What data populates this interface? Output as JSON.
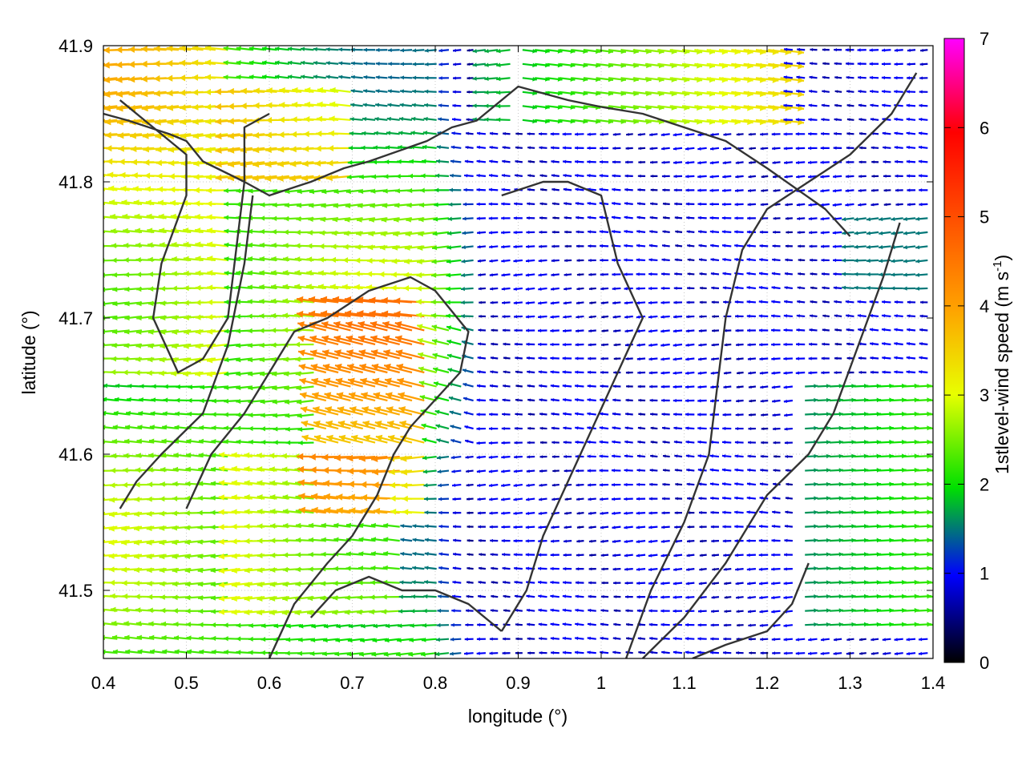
{
  "chart_data": {
    "type": "vector-field",
    "xlabel": "longitude (°)",
    "ylabel": "latitude (°)",
    "xlim": [
      0.4,
      1.4
    ],
    "ylim": [
      41.45,
      41.9
    ],
    "xticks": [
      0.4,
      0.5,
      0.6,
      0.7,
      0.8,
      0.9,
      1.0,
      1.1,
      1.2,
      1.3,
      1.4
    ],
    "xtick_labels": [
      "0.4",
      "0.5",
      "0.6",
      "0.7",
      "0.8",
      "0.9",
      "1",
      "1.1",
      "1.2",
      "1.3",
      "1.4"
    ],
    "yticks": [
      41.5,
      41.6,
      41.7,
      41.8,
      41.9
    ],
    "ytick_labels": [
      "41.5",
      "41.6",
      "41.7",
      "41.8",
      "41.9"
    ],
    "grid": true,
    "colorbar": {
      "label": "1stlevel-wind speed (m s",
      "label_sup": "-1",
      "label_end": ")",
      "range": [
        0,
        7
      ],
      "ticks": [
        0,
        1,
        2,
        3,
        4,
        5,
        6,
        7
      ],
      "tick_labels": [
        "0",
        "1",
        "2",
        "3",
        "4",
        "5",
        "6",
        "7"
      ],
      "palette": [
        [
          0.0,
          "#000000"
        ],
        [
          0.14,
          "#0000ff"
        ],
        [
          0.28,
          "#00e000"
        ],
        [
          0.43,
          "#e8ff00"
        ],
        [
          0.57,
          "#ffa000"
        ],
        [
          0.71,
          "#ff5000"
        ],
        [
          0.85,
          "#ff0000"
        ],
        [
          1.0,
          "#ff00ff"
        ]
      ]
    },
    "wind_regions": [
      {
        "lon": [
          0.4,
          0.85
        ],
        "lat": [
          41.45,
          41.9
        ],
        "speed": "2-4.5 m/s",
        "direction": "westward"
      },
      {
        "lon": [
          0.85,
          1.4
        ],
        "lat": [
          41.45,
          41.9
        ],
        "speed": "0.3-1.5 m/s",
        "direction": "mostly westward"
      },
      {
        "lon": [
          0.9,
          1.2
        ],
        "lat": [
          41.85,
          41.9
        ],
        "speed": "1.5-3.5 m/s",
        "direction": "eastward"
      },
      {
        "lon": [
          1.25,
          1.4
        ],
        "lat": [
          41.45,
          41.65
        ],
        "speed": "1.5-2.5 m/s",
        "direction": "eastward"
      }
    ],
    "contour_lines": [
      [
        [
          0.4,
          41.85
        ],
        [
          0.43,
          41.845
        ],
        [
          0.48,
          41.835
        ],
        [
          0.5,
          41.83
        ],
        [
          0.52,
          41.815
        ],
        [
          0.57,
          41.8
        ],
        [
          0.6,
          41.79
        ],
        [
          0.65,
          41.8
        ],
        [
          0.69,
          41.81
        ],
        [
          0.72,
          41.815
        ],
        [
          0.79,
          41.83
        ],
        [
          0.82,
          41.84
        ],
        [
          0.85,
          41.845
        ],
        [
          0.9,
          41.87
        ],
        [
          0.96,
          41.86
        ],
        [
          1.0,
          41.855
        ],
        [
          1.05,
          41.85
        ],
        [
          1.1,
          41.84
        ],
        [
          1.15,
          41.83
        ],
        [
          1.2,
          41.81
        ],
        [
          1.27,
          41.78
        ],
        [
          1.3,
          41.76
        ]
      ],
      [
        [
          0.42,
          41.86
        ],
        [
          0.48,
          41.83
        ],
        [
          0.5,
          41.82
        ],
        [
          0.5,
          41.79
        ],
        [
          0.47,
          41.74
        ],
        [
          0.46,
          41.7
        ],
        [
          0.49,
          41.66
        ],
        [
          0.52,
          41.67
        ],
        [
          0.55,
          41.7
        ],
        [
          0.56,
          41.75
        ],
        [
          0.57,
          41.8
        ],
        [
          0.57,
          41.84
        ],
        [
          0.6,
          41.85
        ]
      ],
      [
        [
          0.58,
          41.79
        ],
        [
          0.57,
          41.74
        ],
        [
          0.55,
          41.68
        ],
        [
          0.52,
          41.63
        ],
        [
          0.47,
          41.6
        ],
        [
          0.44,
          41.58
        ],
        [
          0.42,
          41.56
        ]
      ],
      [
        [
          0.6,
          41.45
        ],
        [
          0.63,
          41.49
        ],
        [
          0.67,
          41.52
        ],
        [
          0.7,
          41.54
        ],
        [
          0.73,
          41.57
        ],
        [
          0.75,
          41.6
        ],
        [
          0.77,
          41.62
        ],
        [
          0.8,
          41.64
        ],
        [
          0.83,
          41.66
        ],
        [
          0.84,
          41.69
        ],
        [
          0.8,
          41.72
        ],
        [
          0.77,
          41.73
        ],
        [
          0.72,
          41.72
        ],
        [
          0.67,
          41.7
        ],
        [
          0.63,
          41.69
        ],
        [
          0.6,
          41.66
        ],
        [
          0.57,
          41.63
        ],
        [
          0.53,
          41.6
        ],
        [
          0.5,
          41.56
        ]
      ],
      [
        [
          0.65,
          41.48
        ],
        [
          0.68,
          41.5
        ],
        [
          0.72,
          41.51
        ],
        [
          0.76,
          41.5
        ],
        [
          0.8,
          41.5
        ],
        [
          0.84,
          41.49
        ],
        [
          0.88,
          41.47
        ]
      ],
      [
        [
          0.88,
          41.79
        ],
        [
          0.93,
          41.8
        ],
        [
          0.96,
          41.8
        ],
        [
          1.0,
          41.79
        ],
        [
          1.02,
          41.74
        ],
        [
          1.05,
          41.7
        ],
        [
          1.02,
          41.66
        ],
        [
          0.99,
          41.62
        ],
        [
          0.96,
          41.58
        ],
        [
          0.93,
          41.54
        ],
        [
          0.91,
          41.5
        ],
        [
          0.88,
          41.47
        ]
      ],
      [
        [
          1.03,
          41.45
        ],
        [
          1.06,
          41.5
        ],
        [
          1.1,
          41.55
        ],
        [
          1.13,
          41.6
        ],
        [
          1.14,
          41.65
        ],
        [
          1.15,
          41.7
        ],
        [
          1.17,
          41.75
        ],
        [
          1.2,
          41.78
        ],
        [
          1.25,
          41.8
        ],
        [
          1.3,
          41.82
        ],
        [
          1.35,
          41.85
        ],
        [
          1.38,
          41.88
        ]
      ],
      [
        [
          1.05,
          41.45
        ],
        [
          1.1,
          41.48
        ],
        [
          1.15,
          41.52
        ],
        [
          1.2,
          41.57
        ],
        [
          1.25,
          41.6
        ],
        [
          1.28,
          41.63
        ],
        [
          1.31,
          41.68
        ],
        [
          1.34,
          41.73
        ],
        [
          1.36,
          41.77
        ]
      ],
      [
        [
          1.11,
          41.45
        ],
        [
          1.15,
          41.46
        ],
        [
          1.2,
          41.47
        ],
        [
          1.23,
          41.49
        ],
        [
          1.25,
          41.52
        ]
      ]
    ]
  }
}
